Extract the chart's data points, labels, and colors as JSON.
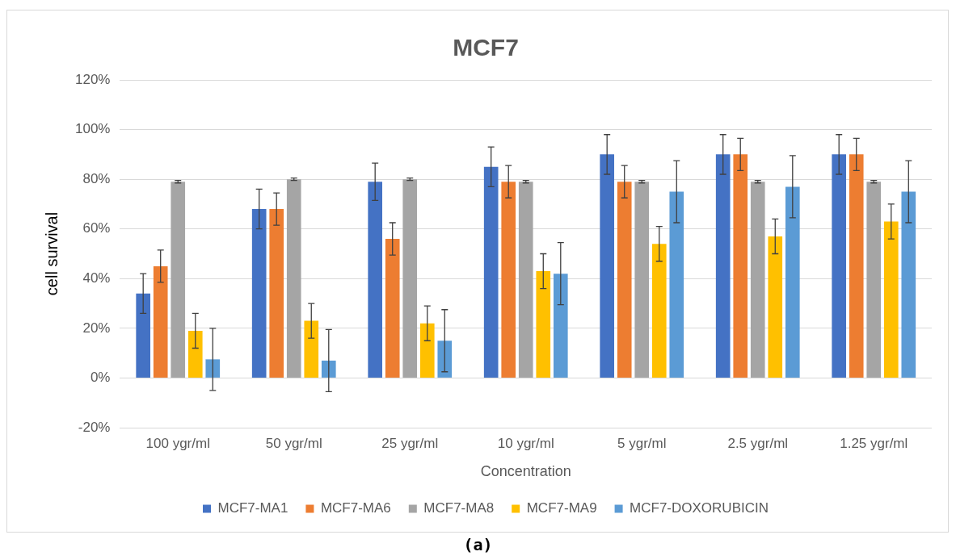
{
  "chart_data": {
    "type": "bar",
    "title": "MCF7",
    "xlabel": "Concentration",
    "ylabel": "cell survival",
    "categories": [
      "100 ygr/ml",
      "50 ygr/ml",
      "25 ygr/ml",
      "10 ygr/ml",
      "5 ygr/ml",
      "2.5 ygr/ml",
      "1.25 ygr/ml"
    ],
    "series": [
      {
        "name": "MCF7-MA1",
        "color": "#4472c4",
        "values": [
          34,
          68,
          79,
          85,
          90,
          90,
          90
        ],
        "errors": [
          8,
          8,
          7.5,
          8,
          8,
          8,
          8
        ]
      },
      {
        "name": "MCF7-MA6",
        "color": "#ed7d31",
        "values": [
          45,
          68,
          56,
          79,
          79,
          90,
          90
        ],
        "errors": [
          6.5,
          6.5,
          6.5,
          6.5,
          6.5,
          6.5,
          6.5
        ]
      },
      {
        "name": "MCF7-MA8",
        "color": "#a5a5a5",
        "values": [
          79,
          80,
          80,
          79,
          79,
          79,
          79
        ],
        "errors": [
          0.5,
          0.5,
          0.5,
          0.5,
          0.5,
          0.5,
          0.5
        ]
      },
      {
        "name": "MCF7-MA9",
        "color": "#ffc000",
        "values": [
          19,
          23,
          22,
          43,
          54,
          57,
          63
        ],
        "errors": [
          7,
          7,
          7,
          7,
          7,
          7,
          7
        ]
      },
      {
        "name": "MCF7-DOXORUBICIN",
        "color": "#5b9bd5",
        "values": [
          7.5,
          7,
          15,
          42,
          75,
          77,
          75
        ],
        "errors": [
          12.5,
          12.5,
          12.5,
          12.5,
          12.5,
          12.5,
          12.5
        ]
      }
    ],
    "ylim": [
      -20,
      120
    ],
    "yticks": [
      {
        "value": -20,
        "label": "-20%"
      },
      {
        "value": 0,
        "label": "0%"
      },
      {
        "value": 20,
        "label": "20%"
      },
      {
        "value": 40,
        "label": "40%"
      },
      {
        "value": 60,
        "label": "60%"
      },
      {
        "value": 80,
        "label": "80%"
      },
      {
        "value": 100,
        "label": "100%"
      },
      {
        "value": 120,
        "label": "120%"
      }
    ],
    "grid": "y",
    "legend": "bottom",
    "annotations": [
      "(a)"
    ]
  }
}
